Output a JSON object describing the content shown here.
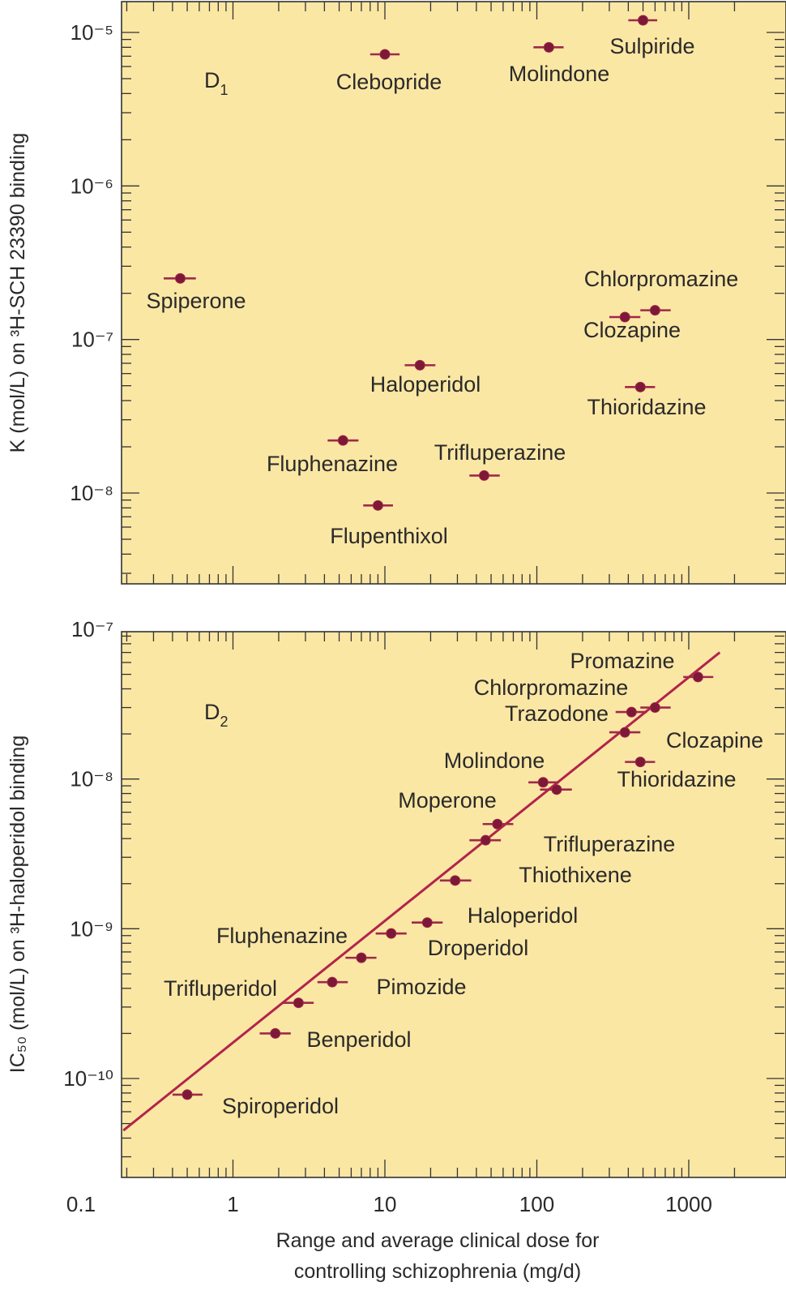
{
  "colors": {
    "panel_bg": "#fbe7a4",
    "point": "#a0294a",
    "point_fill": "#7d1837",
    "fit_line": "#b3234a",
    "axis": "#333333",
    "text": "#2a2a2a"
  },
  "x_axis": {
    "scale": "log",
    "range": [
      0.1,
      2000
    ],
    "tick_labels": [
      "0.1",
      "1",
      "10",
      "100",
      "1000"
    ],
    "label_line1": "Range and average clinical dose for",
    "label_line2": "controlling schizophrenia (mg/d)"
  },
  "chart_data": [
    {
      "type": "scatter",
      "panel_label": "D",
      "panel_label_sub": "1",
      "yscale": "log",
      "ylim": [
        3.5e-09,
        1.4e-05
      ],
      "ylabel": "K (mol/L) on ³H-SCH 23390 binding",
      "y_tick_labels": [
        "10⁻⁵",
        "10⁻⁶",
        "10⁻⁷",
        "10⁻⁸"
      ],
      "y_tick_values": [
        1e-05,
        1e-06,
        1e-07,
        1e-08
      ],
      "grid": false,
      "points": [
        {
          "name": "Sulpiride",
          "x": 500,
          "y": 1.2e-05,
          "xerr": [
            400,
            620
          ]
        },
        {
          "name": "Clebopride",
          "x": 10,
          "y": 7.2e-06,
          "xerr": [
            8,
            12.5
          ]
        },
        {
          "name": "Molindone",
          "x": 120,
          "y": 8e-06,
          "xerr": [
            95,
            150
          ]
        },
        {
          "name": "Spiperone",
          "x": 0.45,
          "y": 2.5e-07,
          "xerr": [
            0.35,
            0.57
          ]
        },
        {
          "name": "Chlorpromazine",
          "x": 600,
          "y": 1.55e-07,
          "xerr": [
            480,
            760
          ]
        },
        {
          "name": "Clozapine",
          "x": 380,
          "y": 1.4e-07,
          "xerr": [
            300,
            480
          ]
        },
        {
          "name": "Haloperidol",
          "x": 17,
          "y": 6.8e-08,
          "xerr": [
            13.5,
            21.5
          ]
        },
        {
          "name": "Thioridazine",
          "x": 480,
          "y": 4.9e-08,
          "xerr": [
            380,
            600
          ]
        },
        {
          "name": "Fluphenazine",
          "x": 5.3,
          "y": 2.2e-08,
          "xerr": [
            4.2,
            6.7
          ]
        },
        {
          "name": "Trifluperazine",
          "x": 45,
          "y": 1.3e-08,
          "xerr": [
            36,
            57
          ]
        },
        {
          "name": "Flupenthixol",
          "x": 9,
          "y": 8.3e-09,
          "xerr": [
            7.2,
            11.3
          ]
        }
      ]
    },
    {
      "type": "scatter",
      "panel_label": "D",
      "panel_label_sub": "2",
      "yscale": "log",
      "ylim": [
        4e-11,
        1e-07
      ],
      "ylabel": "IC₅₀ (mol/L) on ³H-haloperidol binding",
      "y_tick_labels": [
        "10⁻⁷",
        "10⁻⁸",
        "10⁻⁹",
        "10⁻¹⁰"
      ],
      "y_tick_values": [
        1e-07,
        1e-08,
        1e-09,
        1e-10
      ],
      "grid": false,
      "fit_line": {
        "x": [
          0.19,
          1600
        ],
        "y": [
          4.5e-11,
          7e-08
        ]
      },
      "points": [
        {
          "name": "Promazine",
          "x": 1150,
          "y": 4.8e-08,
          "xerr": [
            920,
            1450
          ]
        },
        {
          "name": "Chlorpromazine",
          "x": 420,
          "y": 2.8e-08,
          "xerr": [
            330,
            530
          ]
        },
        {
          "name": "",
          "x": 600,
          "y": 3e-08,
          "xerr": [
            480,
            760
          ]
        },
        {
          "name": "Trazodone",
          "x": 380,
          "y": 2.05e-08,
          "xerr": [
            300,
            480
          ]
        },
        {
          "name": "Clozapine",
          "x": 480,
          "y": 1.3e-08,
          "xerr": [
            380,
            600
          ]
        },
        {
          "name": "Molindone",
          "x": 110,
          "y": 9.5e-09,
          "xerr": [
            88,
            140
          ]
        },
        {
          "name": "Thioridazine",
          "x": 135,
          "y": 8.5e-09,
          "xerr": [
            105,
            170
          ]
        },
        {
          "name": "Moperone",
          "x": 55,
          "y": 5e-09,
          "xerr": [
            44,
            70
          ]
        },
        {
          "name": "Trifluperazine",
          "x": 46,
          "y": 3.9e-09,
          "xerr": [
            36,
            58
          ]
        },
        {
          "name": "Thiothixene",
          "x": 29,
          "y": 2.1e-09,
          "xerr": [
            23,
            37
          ]
        },
        {
          "name": "Haloperidol",
          "x": 19,
          "y": 1.1e-09,
          "xerr": [
            15,
            24
          ]
        },
        {
          "name": "Droperidol",
          "x": 11,
          "y": 9.3e-10,
          "xerr": [
            8.7,
            13.9
          ]
        },
        {
          "name": "Fluphenazine",
          "x": 7,
          "y": 6.4e-10,
          "xerr": [
            5.5,
            8.8
          ]
        },
        {
          "name": "Pimozide",
          "x": 4.5,
          "y": 4.4e-10,
          "xerr": [
            3.6,
            5.7
          ]
        },
        {
          "name": "Trifluperidol",
          "x": 2.7,
          "y": 3.2e-10,
          "xerr": [
            2.1,
            3.4
          ]
        },
        {
          "name": "Benperidol",
          "x": 1.9,
          "y": 2e-10,
          "xerr": [
            1.5,
            2.4
          ]
        },
        {
          "name": "Spiroperidol",
          "x": 0.5,
          "y": 7.8e-11,
          "xerr": [
            0.4,
            0.63
          ]
        }
      ]
    }
  ]
}
